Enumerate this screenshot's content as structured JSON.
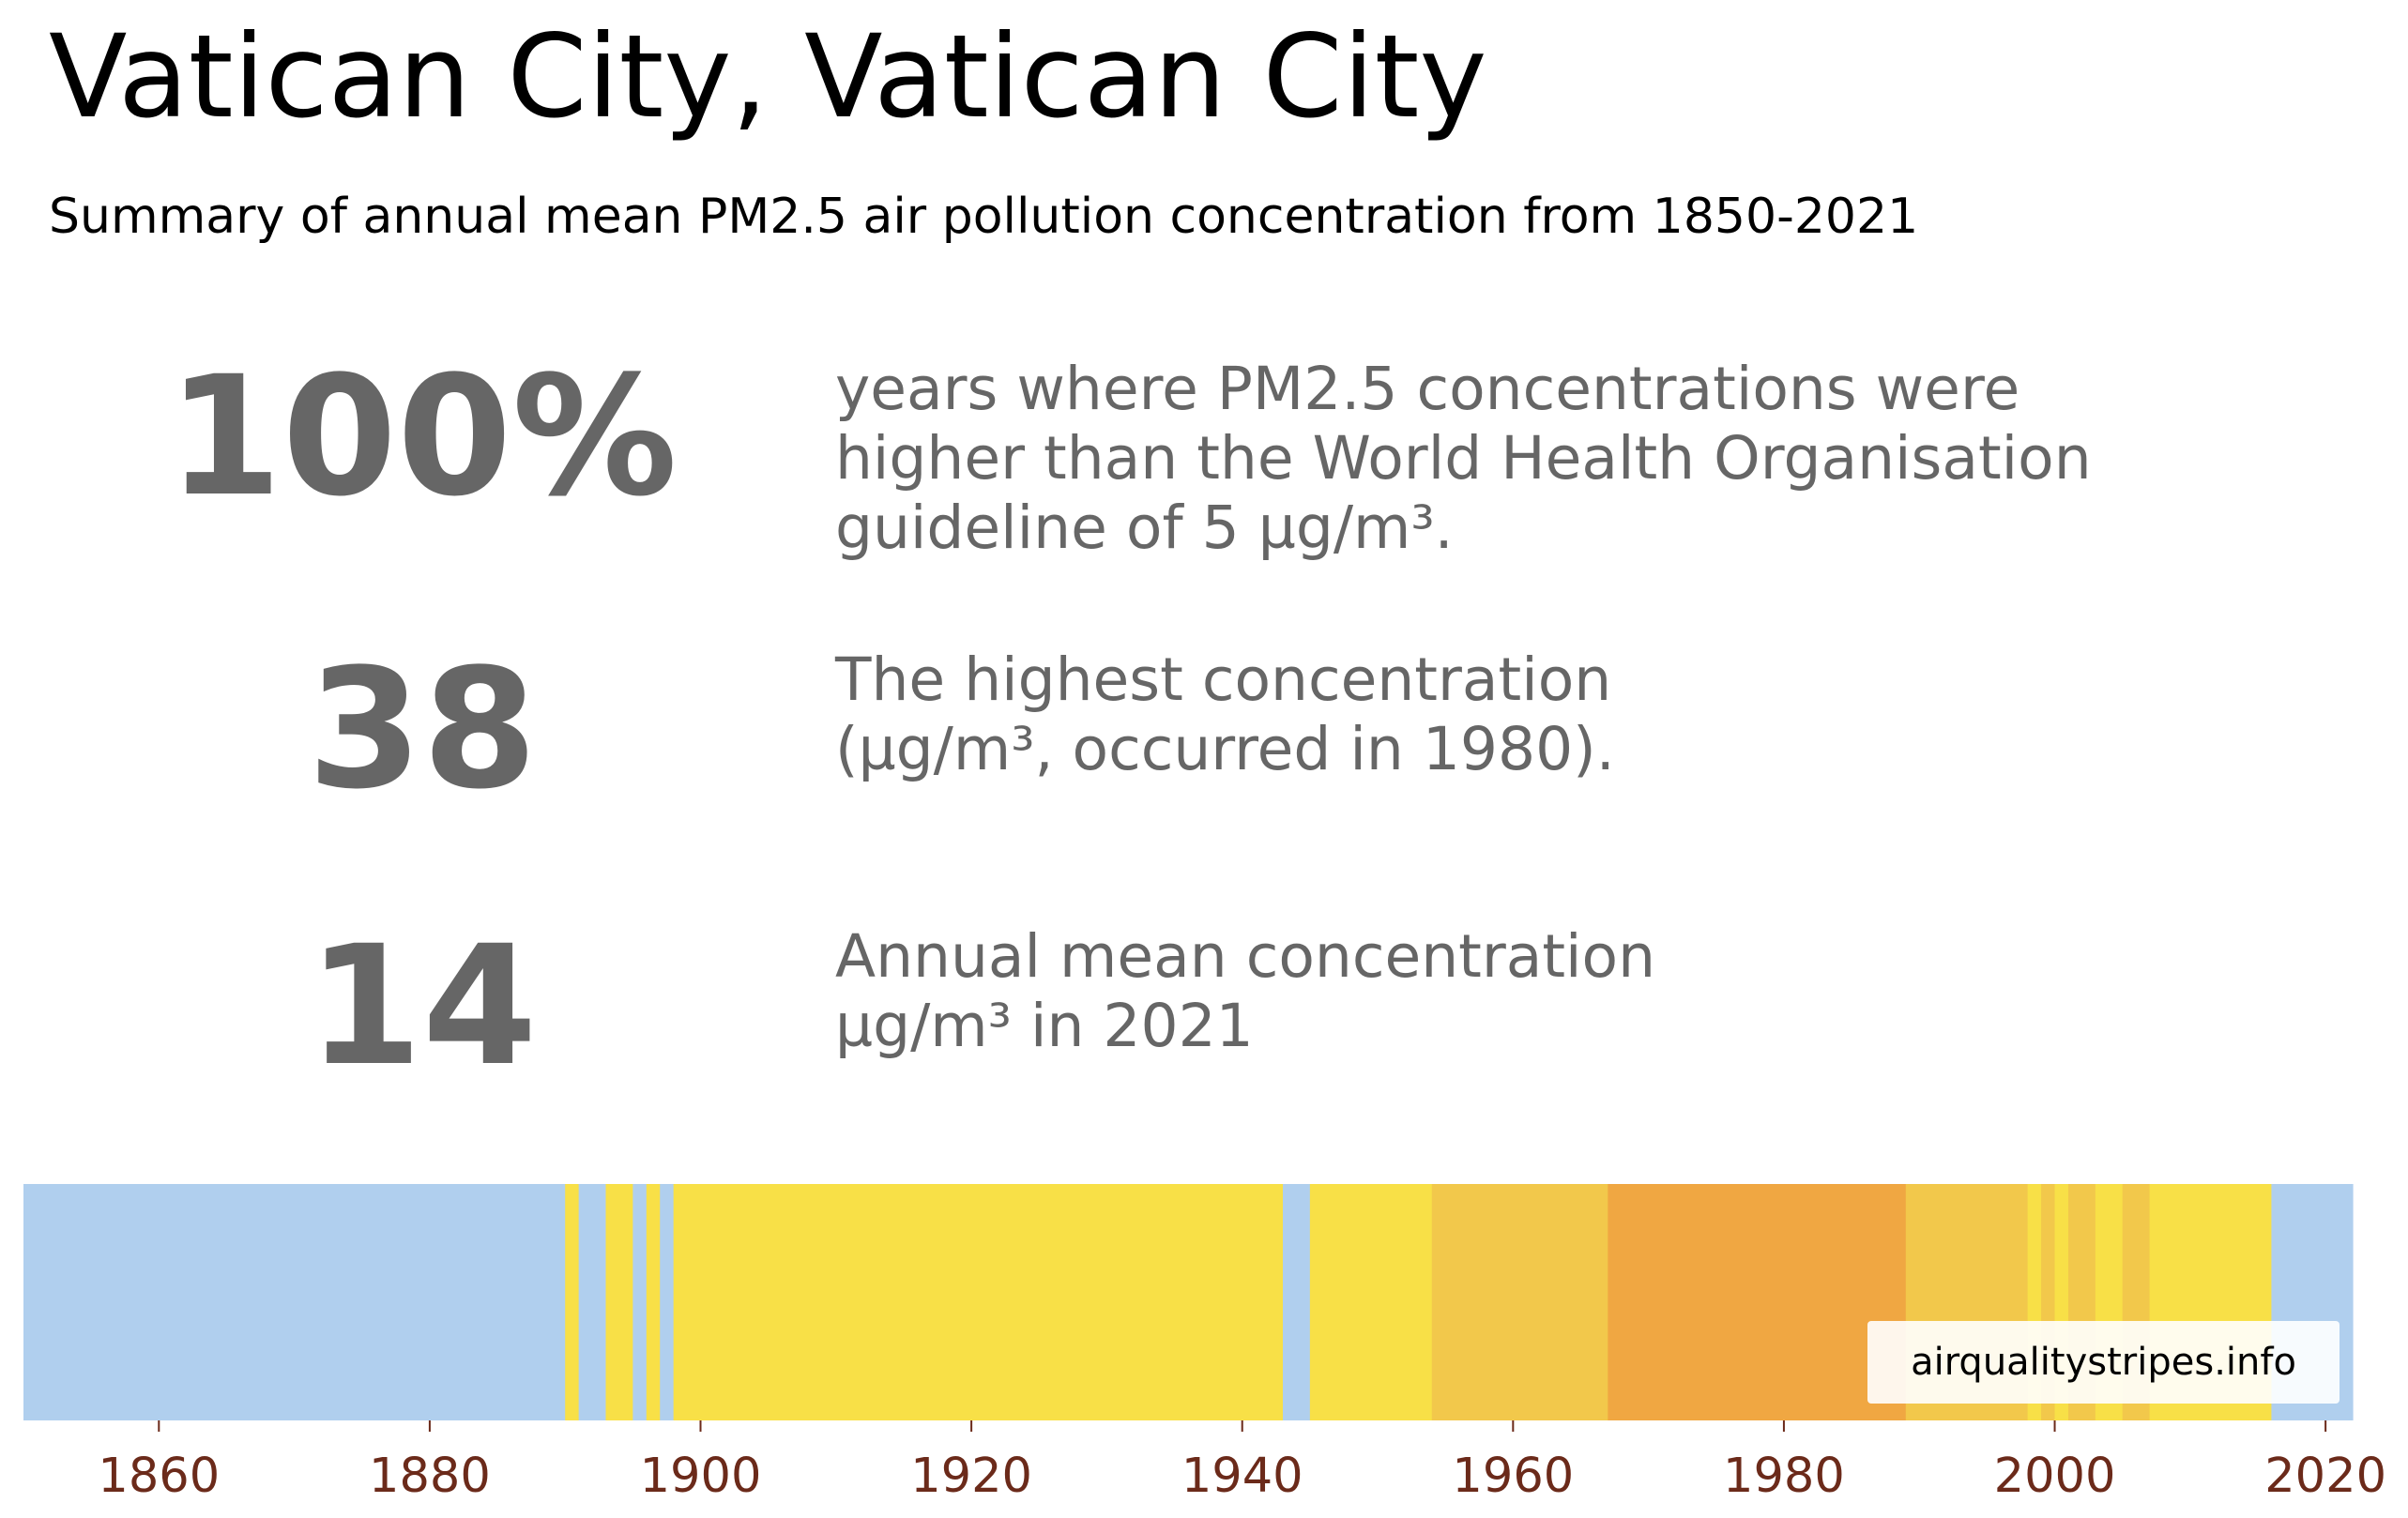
{
  "title": "Vatican City, Vatican City",
  "subtitle": "Summary of annual mean PM2.5 air pollution concentration from 1850-2021",
  "stats": [
    {
      "value": "100%",
      "description": "years where PM2.5 concentrations were\nhigher than the World Health Organisation\nguideline of 5 µg/m³."
    },
    {
      "value": "38",
      "description": "The highest concentration\n(µg/m³, occurred in 1980)."
    },
    {
      "value": "14",
      "description": "Annual mean concentration\nµg/m³ in 2021"
    }
  ],
  "credit": "airqualitystripes.info",
  "chart_data": {
    "type": "heatmap",
    "x_range": [
      1850,
      2022
    ],
    "x_ticks": [
      "1860",
      "1880",
      "1900",
      "1920",
      "1940",
      "1960",
      "1980",
      "2000",
      "2020"
    ],
    "tick_color": "#6b2a1a",
    "colors": {
      "low": "#b0cfee",
      "moderate": "#f8e047",
      "elevated": "#f2c84b",
      "high": "#f0a742"
    },
    "stripes": [
      {
        "from": 1850,
        "to": 1890,
        "level": "low"
      },
      {
        "from": 1890,
        "to": 1891,
        "level": "moderate"
      },
      {
        "from": 1891,
        "to": 1893,
        "level": "low"
      },
      {
        "from": 1893,
        "to": 1895,
        "level": "moderate"
      },
      {
        "from": 1895,
        "to": 1896,
        "level": "low"
      },
      {
        "from": 1896,
        "to": 1897,
        "level": "moderate"
      },
      {
        "from": 1897,
        "to": 1898,
        "level": "low"
      },
      {
        "from": 1898,
        "to": 1943,
        "level": "moderate"
      },
      {
        "from": 1943,
        "to": 1945,
        "level": "low"
      },
      {
        "from": 1945,
        "to": 1954,
        "level": "moderate"
      },
      {
        "from": 1954,
        "to": 1967,
        "level": "elevated"
      },
      {
        "from": 1967,
        "to": 1989,
        "level": "high"
      },
      {
        "from": 1989,
        "to": 1998,
        "level": "elevated"
      },
      {
        "from": 1998,
        "to": 1999,
        "level": "moderate"
      },
      {
        "from": 1999,
        "to": 2000,
        "level": "elevated"
      },
      {
        "from": 2000,
        "to": 2001,
        "level": "moderate"
      },
      {
        "from": 2001,
        "to": 2003,
        "level": "elevated"
      },
      {
        "from": 2003,
        "to": 2005,
        "level": "moderate"
      },
      {
        "from": 2005,
        "to": 2007,
        "level": "elevated"
      },
      {
        "from": 2007,
        "to": 2016,
        "level": "moderate"
      },
      {
        "from": 2016,
        "to": 2022,
        "level": "low"
      }
    ]
  }
}
